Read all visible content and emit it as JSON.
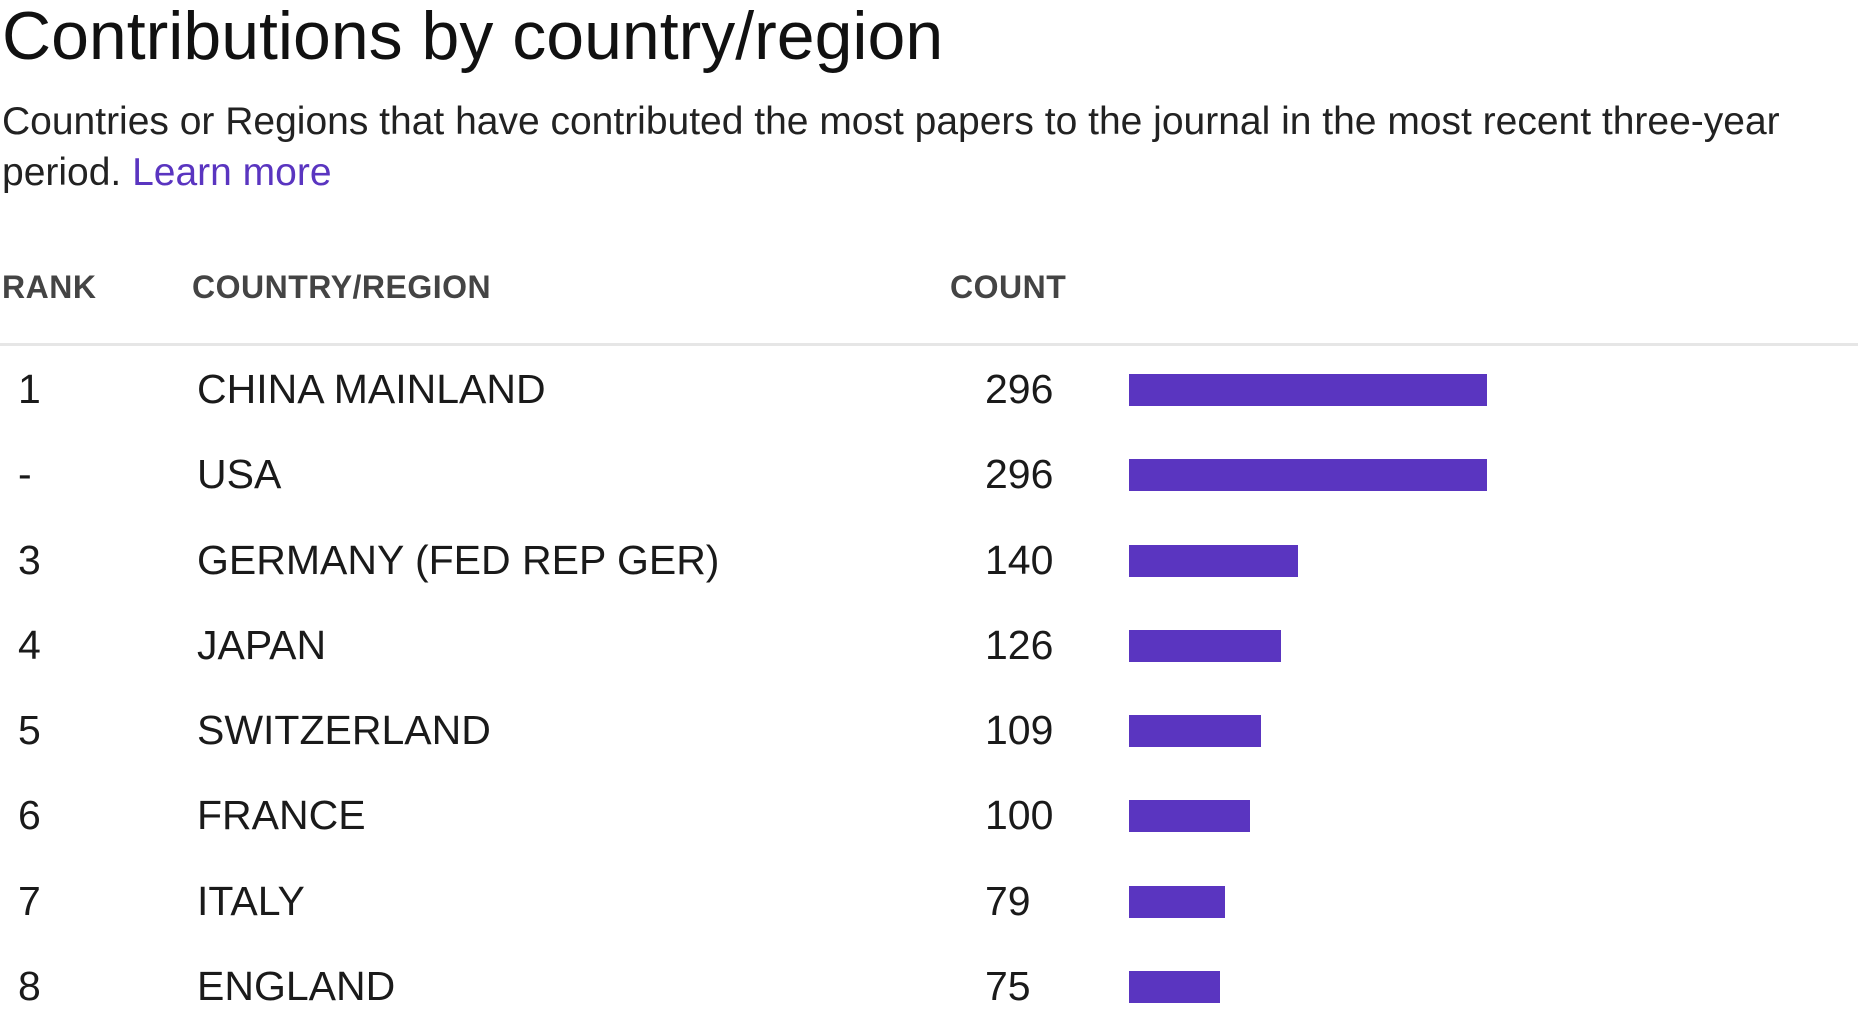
{
  "header": {
    "title": "Contributions by country/region",
    "subtitle": "Countries or Regions that have contributed the most papers to the journal in the most recent three-year period.",
    "learn_more": "Learn more"
  },
  "table": {
    "columns": {
      "rank": "RANK",
      "country": "COUNTRY/REGION",
      "count": "COUNT"
    },
    "bar_color": "#5a35c0",
    "rows": [
      {
        "rank": "1",
        "country": "CHINA MAINLAND",
        "count": "296",
        "value": 296
      },
      {
        "rank": "-",
        "country": "USA",
        "count": "296",
        "value": 296
      },
      {
        "rank": "3",
        "country": "GERMANY (FED REP GER)",
        "count": "140",
        "value": 140
      },
      {
        "rank": "4",
        "country": "JAPAN",
        "count": "126",
        "value": 126
      },
      {
        "rank": "5",
        "country": "SWITZERLAND",
        "count": "109",
        "value": 109
      },
      {
        "rank": "6",
        "country": "FRANCE",
        "count": "100",
        "value": 100
      },
      {
        "rank": "7",
        "country": "ITALY",
        "count": "79",
        "value": 79
      },
      {
        "rank": "8",
        "country": "ENGLAND",
        "count": "75",
        "value": 75
      }
    ]
  }
}
